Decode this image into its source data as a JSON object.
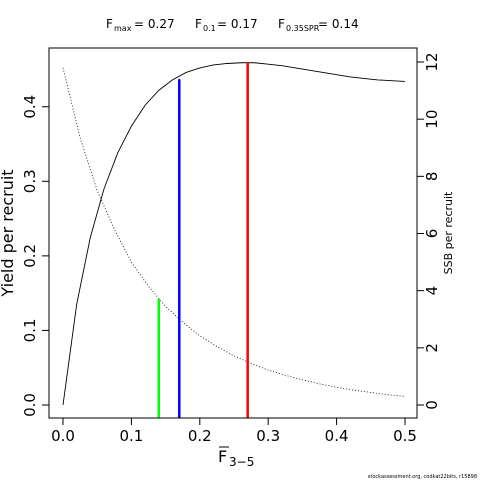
{
  "chart_data": {
    "type": "line",
    "header": {
      "fmax": {
        "label": "F",
        "sub": "max",
        "value": "= 0.27"
      },
      "f01": {
        "label": "F",
        "sub": "0.1",
        "value": "= 0.17"
      },
      "fspr": {
        "label": "F",
        "sub": "0.35SPR",
        "value": "= 0.14"
      }
    },
    "xlabel": {
      "main": "F",
      "sub": "3−5"
    },
    "ylabel_left": "Yield per recruit",
    "ylabel_right": "SSB per recruit",
    "xlim": [
      0,
      0.5
    ],
    "ylim_left": [
      0,
      0.46
    ],
    "ylim_right": [
      0,
      12
    ],
    "x_ticks": [
      {
        "value": 0.0,
        "label": "0.0"
      },
      {
        "value": 0.1,
        "label": "0.1"
      },
      {
        "value": 0.2,
        "label": "0.2"
      },
      {
        "value": 0.3,
        "label": "0.3"
      },
      {
        "value": 0.4,
        "label": "0.4"
      },
      {
        "value": 0.5,
        "label": "0.5"
      }
    ],
    "y_left_ticks": [
      {
        "value": 0.0,
        "label": "0.0"
      },
      {
        "value": 0.1,
        "label": "0.1"
      },
      {
        "value": 0.2,
        "label": "0.2"
      },
      {
        "value": 0.3,
        "label": "0.3"
      },
      {
        "value": 0.4,
        "label": "0.4"
      }
    ],
    "y_right_ticks": [
      {
        "value": 0,
        "label": "0"
      },
      {
        "value": 2,
        "label": "2"
      },
      {
        "value": 4,
        "label": "4"
      },
      {
        "value": 6,
        "label": "6"
      },
      {
        "value": 8,
        "label": "8"
      },
      {
        "value": 10,
        "label": "10"
      },
      {
        "value": 12,
        "label": "12"
      }
    ],
    "series": [
      {
        "style": "solid",
        "axis": "left",
        "x": [
          0,
          0.02,
          0.04,
          0.06,
          0.08,
          0.1,
          0.12,
          0.14,
          0.16,
          0.18,
          0.2,
          0.22,
          0.24,
          0.26,
          0.27,
          0.28,
          0.3,
          0.32,
          0.34,
          0.36,
          0.38,
          0.4,
          0.42,
          0.44,
          0.46,
          0.48,
          0.5
        ],
        "y": [
          0.0,
          0.135,
          0.225,
          0.29,
          0.338,
          0.374,
          0.402,
          0.422,
          0.436,
          0.446,
          0.452,
          0.456,
          0.458,
          0.459,
          0.459,
          0.459,
          0.457,
          0.455,
          0.452,
          0.449,
          0.446,
          0.443,
          0.44,
          0.438,
          0.436,
          0.435,
          0.434
        ]
      },
      {
        "style": "dotted",
        "axis": "right",
        "x": [
          0,
          0.025,
          0.05,
          0.075,
          0.1,
          0.125,
          0.15,
          0.175,
          0.2,
          0.225,
          0.25,
          0.275,
          0.3,
          0.325,
          0.35,
          0.375,
          0.4,
          0.425,
          0.45,
          0.475,
          0.5
        ],
        "y": [
          11.8,
          9.35,
          7.5,
          6.15,
          5.0,
          4.15,
          3.45,
          2.9,
          2.42,
          2.05,
          1.72,
          1.45,
          1.22,
          1.04,
          0.88,
          0.74,
          0.62,
          0.52,
          0.44,
          0.36,
          0.3
        ]
      }
    ],
    "reference_lines": [
      {
        "name": "F0.35SPR",
        "x": 0.14,
        "y": 0.142,
        "color": "#00ff00"
      },
      {
        "name": "F0.1",
        "x": 0.17,
        "y": 0.437,
        "color": "#0000ff"
      },
      {
        "name": "Fmax",
        "x": 0.27,
        "y": 0.459,
        "color": "#ff0000"
      }
    ],
    "grid": false,
    "footer": "stockassessment.org, codkat22bits, r15898"
  }
}
